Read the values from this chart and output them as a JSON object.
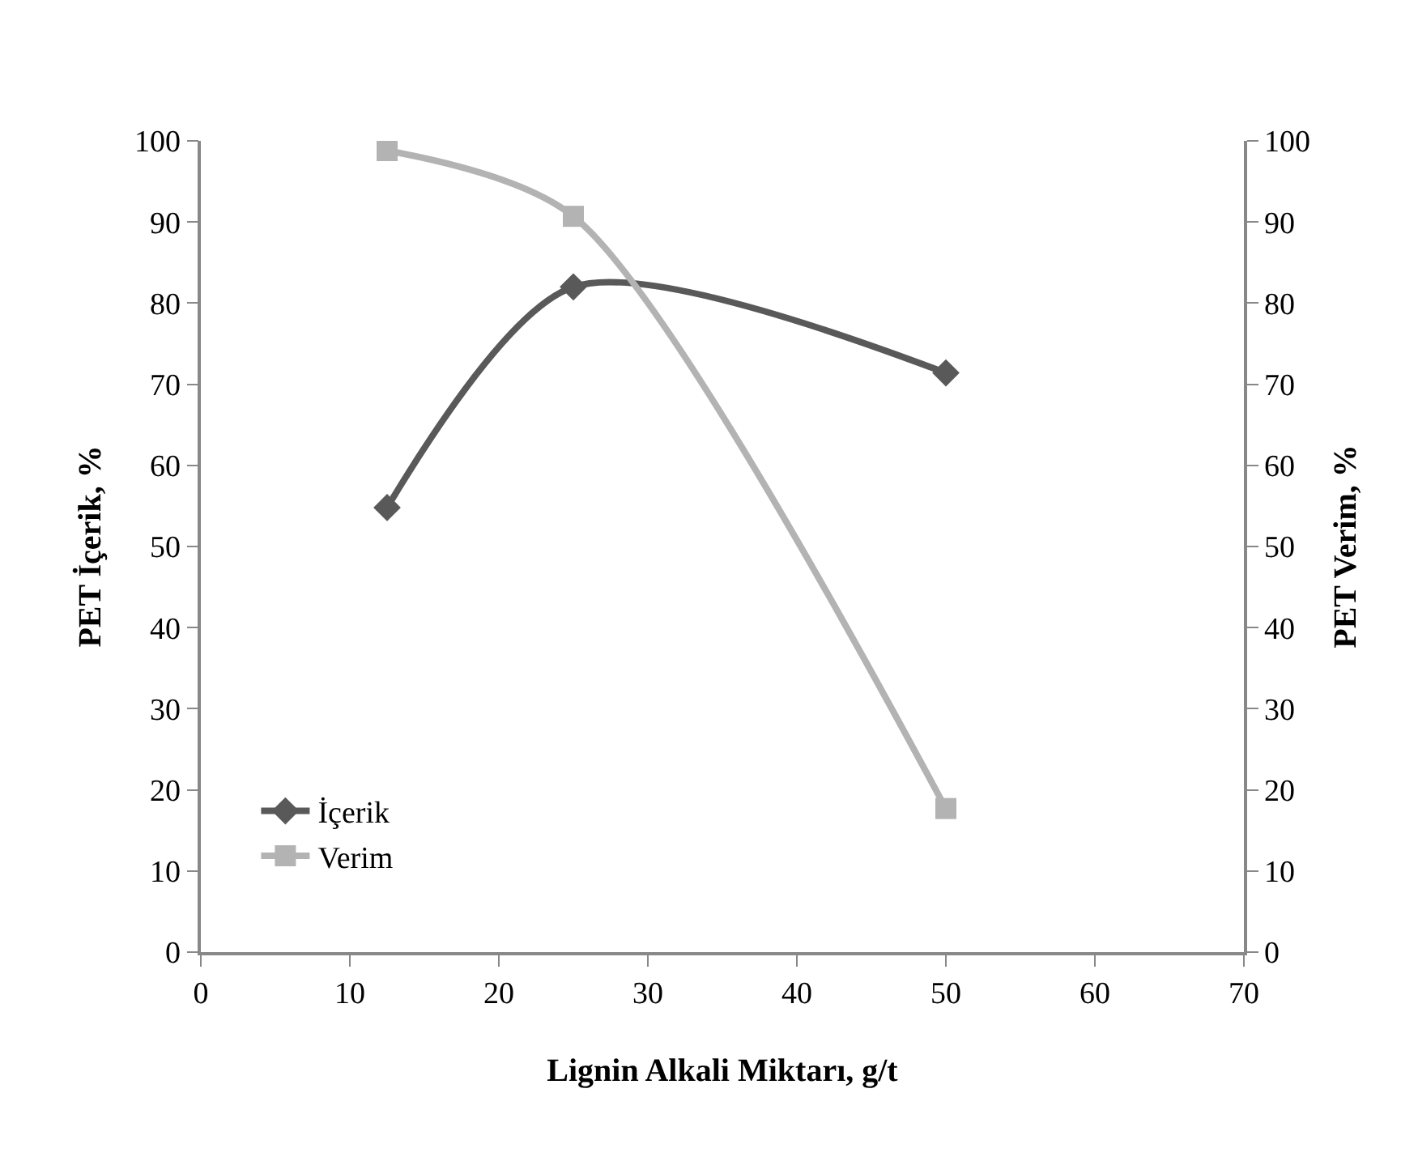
{
  "chart_data": {
    "type": "line",
    "xlabel": "Lignin Alkali Miktarı, g/t",
    "ylabel": "PET İçerik, %",
    "y2label": "PET Verim, %",
    "x": [
      12.5,
      25,
      50
    ],
    "series": [
      {
        "name": "İçerik",
        "color": "#595959",
        "values": [
          54.8,
          82,
          71.4
        ],
        "marker": "diamond"
      },
      {
        "name": "Verim",
        "color": "#b3b3b3",
        "values": [
          98.8,
          90.7,
          17.7
        ],
        "marker": "square",
        "axis": "y2"
      }
    ],
    "xlim": [
      0,
      70
    ],
    "xticks": [
      0,
      10,
      20,
      30,
      40,
      50,
      60,
      70
    ],
    "ylim": [
      0,
      100
    ],
    "yticks": [
      0,
      10,
      20,
      30,
      40,
      50,
      60,
      70,
      80,
      90,
      100
    ],
    "y2lim": [
      0,
      100
    ],
    "y2ticks": [
      0,
      10,
      20,
      30,
      40,
      50,
      60,
      70,
      80,
      90,
      100
    ],
    "legend": "bottom left",
    "line_style": "solid"
  }
}
